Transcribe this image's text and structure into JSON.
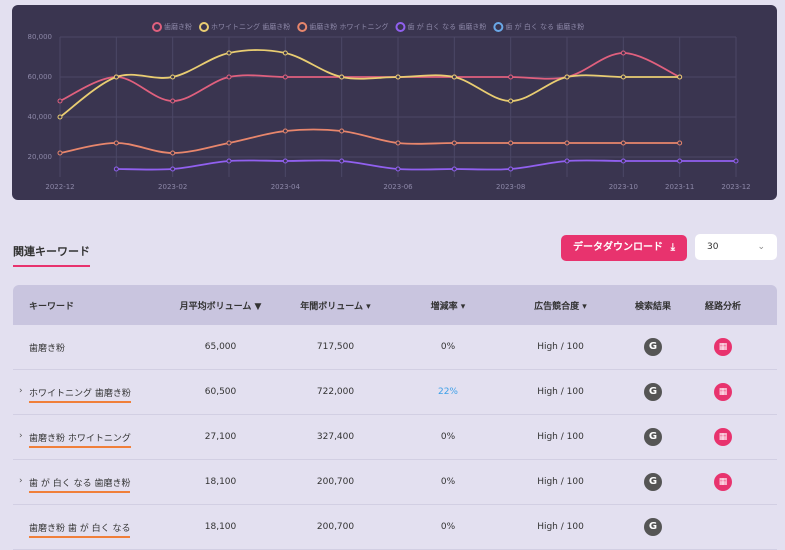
{
  "chart_data": {
    "type": "line",
    "categories": [
      "2022-12",
      null,
      "2023-02",
      null,
      "2023-04",
      null,
      "2023-06",
      null,
      "2023-08",
      null,
      "2023-10",
      "2023-11",
      "2023-12"
    ],
    "series": [
      {
        "name": "歯磨き粉",
        "color": "#e0607e",
        "values": [
          48000,
          60000,
          48000,
          60000,
          60000,
          60000,
          60000,
          60000,
          60000,
          60000,
          72000,
          60000,
          null
        ]
      },
      {
        "name": "ホワイトニング 歯磨き粉",
        "color": "#e9cd72",
        "values": [
          40000,
          60000,
          60000,
          72000,
          72000,
          60000,
          60000,
          60000,
          48000,
          60000,
          60000,
          60000,
          null
        ]
      },
      {
        "name": "歯磨き粉 ホワイトニング",
        "color": "#e8866c",
        "values": [
          22000,
          27000,
          22000,
          27000,
          33000,
          33000,
          27000,
          27000,
          27000,
          27000,
          27000,
          27000,
          null
        ]
      },
      {
        "name": "歯 が 白く なる 歯磨き粉",
        "color": "#9160f0",
        "values": [
          null,
          14000,
          14000,
          18000,
          18000,
          18000,
          14000,
          14000,
          14000,
          18000,
          18000,
          18000,
          18000
        ]
      },
      {
        "name": "歯 が 白く なる 歯磨き粉",
        "color": "#6aa8e8",
        "values": [
          null,
          null,
          null,
          null,
          null,
          null,
          null,
          null,
          null,
          null,
          null,
          null,
          null
        ]
      }
    ],
    "ylim": [
      10000,
      80000
    ],
    "yticks": [
      {
        "value": 20000,
        "label": "20,000"
      },
      {
        "value": 40000,
        "label": "40,000"
      },
      {
        "value": 60000,
        "label": "60,000"
      },
      {
        "value": 80000,
        "label": "80,000"
      }
    ],
    "grid": true,
    "legend": "top"
  },
  "section_title": "関連キーワード",
  "download_button": "データダウンロード",
  "page_size": "30",
  "table": {
    "columns": [
      "キーワード",
      "月平均ボリューム",
      "年間ボリューム",
      "増減率",
      "広告競合度",
      "検索結果",
      "経路分析"
    ],
    "rows": [
      [
        "歯磨き粉",
        "65,000",
        "717,500",
        "0%",
        "High / 100"
      ],
      [
        "ホワイトニング 歯磨き粉",
        "60,500",
        "722,000",
        "22%",
        "High / 100"
      ],
      [
        "歯磨き粉 ホワイトニング",
        "27,100",
        "327,400",
        "0%",
        "High / 100"
      ],
      [
        "歯 が 白く なる 歯磨き粉",
        "18,100",
        "200,700",
        "0%",
        "High / 100"
      ],
      [
        "歯磨き粉 歯 が 白く なる",
        "18,100",
        "200,700",
        "0%",
        "High / 100"
      ]
    ]
  }
}
